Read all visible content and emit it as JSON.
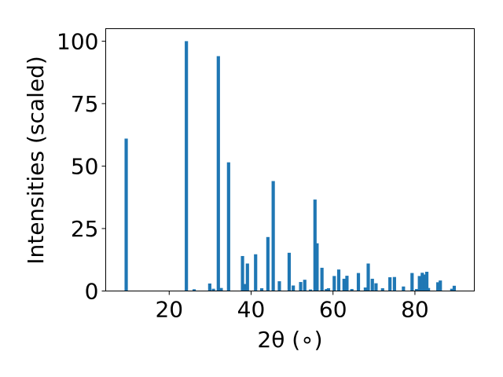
{
  "chart_data": {
    "type": "bar",
    "title": "",
    "xlabel": "2θ (∘)",
    "ylabel": "Intensities (scaled)",
    "xlim": [
      4.5,
      94.5
    ],
    "ylim": [
      0,
      105
    ],
    "xticks": [
      20,
      40,
      60,
      80
    ],
    "yticks": [
      0,
      25,
      50,
      75,
      100
    ],
    "bar_color": "#1f77b4",
    "bar_width_deg": 0.8,
    "grid": false,
    "x": [
      9.5,
      24.2,
      26.1,
      29.9,
      30.8,
      32.0,
      32.7,
      34.5,
      37.9,
      38.5,
      39.1,
      41.1,
      42.6,
      44.1,
      45.4,
      46.9,
      49.3,
      50.3,
      52.1,
      53.1,
      54.5,
      55.6,
      56.1,
      57.3,
      58.4,
      58.9,
      60.3,
      61.4,
      62.7,
      63.4,
      64.6,
      66.2,
      67.9,
      68.6,
      69.6,
      70.5,
      72.1,
      73.9,
      75.0,
      77.2,
      79.3,
      80.4,
      81.1,
      81.8,
      82.5,
      82.9,
      83.3,
      85.6,
      86.2,
      89.0,
      89.6
    ],
    "values": [
      61,
      100,
      0.7,
      3,
      0.9,
      94,
      1.2,
      51.5,
      14,
      2.8,
      11,
      14.7,
      1.1,
      21.6,
      44,
      3.9,
      15.3,
      2.2,
      3.6,
      4.5,
      0.6,
      36.6,
      19.1,
      9.3,
      0.8,
      1.1,
      6,
      8.6,
      4.9,
      6.1,
      0.8,
      7.2,
      1.4,
      11,
      4.9,
      3.1,
      1.1,
      5.5,
      5.6,
      1.8,
      7.2,
      0.8,
      6,
      7.3,
      6.6,
      7.7,
      1.2,
      3.5,
      4.2,
      0.9,
      2.1
    ]
  }
}
